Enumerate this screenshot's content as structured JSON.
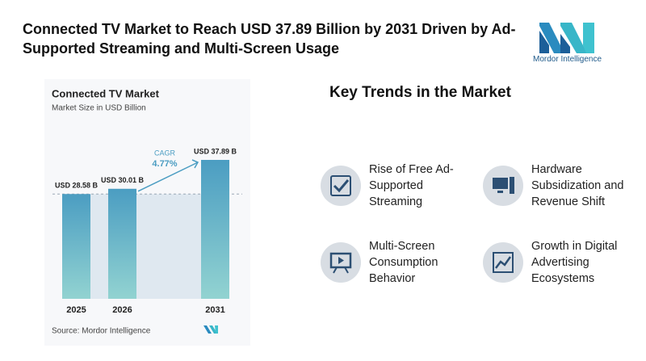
{
  "header": {
    "title": "Connected TV Market to Reach USD 37.89 Billion by 2031 Driven by Ad-Supported Streaming and Multi-Screen Usage",
    "brand": "Mordor Intelligence"
  },
  "chart_data": {
    "type": "bar",
    "title": "Connected TV Market",
    "subtitle": "Market Size in USD Billion",
    "categories": [
      "2025",
      "2026",
      "2031"
    ],
    "values": [
      28.58,
      30.01,
      37.89
    ],
    "value_labels": [
      "USD 28.58 B",
      "USD 30.01 B",
      "USD 37.89 B"
    ],
    "annotation": {
      "label": "CAGR",
      "value": "4.77%"
    },
    "source": "Source: Mordor Intelligence",
    "colors": [
      "#4b9dc2",
      "#92d3d1"
    ]
  },
  "trends": {
    "title": "Key Trends in the Market",
    "items": [
      "Rise of Free Ad-Supported Streaming",
      "Hardware Subsidization and Revenue Shift",
      "Multi-Screen Consumption Behavior",
      "Growth in Digital Advertising Ecosystems"
    ]
  }
}
